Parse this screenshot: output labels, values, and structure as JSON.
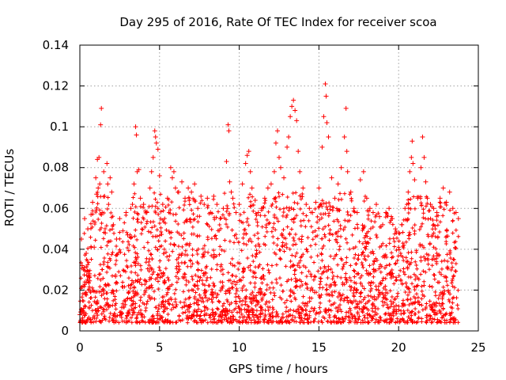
{
  "chart_data": {
    "type": "scatter",
    "title": "Day 295 of 2016, Rate Of TEC Index for receiver scoa",
    "xlabel": "GPS time / hours",
    "ylabel": "ROTI / TECUs",
    "xlim": [
      0,
      25
    ],
    "ylim": [
      0,
      0.14
    ],
    "xticks": [
      0,
      5,
      10,
      15,
      20,
      25
    ],
    "xtick_labels": [
      "0",
      "5",
      "10",
      "15",
      "20",
      "25"
    ],
    "yticks": [
      0,
      0.02,
      0.04,
      0.06,
      0.08,
      0.1,
      0.12,
      0.14
    ],
    "ytick_labels": [
      "0",
      "0.02",
      "0.04",
      "0.06",
      "0.08",
      "0.1",
      "0.12",
      "0.14"
    ],
    "grid": true,
    "marker": "+",
    "color": "#ff0000",
    "series": [
      {
        "name": "ROTI",
        "points": [
          [
            0.0,
            0.008
          ],
          [
            0.1,
            0.045
          ],
          [
            0.15,
            0.032
          ],
          [
            0.2,
            0.022
          ],
          [
            0.3,
            0.055
          ],
          [
            0.35,
            0.018
          ],
          [
            0.4,
            0.038
          ],
          [
            0.5,
            0.05
          ],
          [
            0.6,
            0.028
          ],
          [
            0.7,
            0.057
          ],
          [
            0.8,
            0.063
          ],
          [
            0.9,
            0.041
          ],
          [
            1.0,
            0.075
          ],
          [
            1.05,
            0.067
          ],
          [
            1.1,
            0.084
          ],
          [
            1.15,
            0.07
          ],
          [
            1.2,
            0.085
          ],
          [
            1.25,
            0.072
          ],
          [
            1.3,
            0.101
          ],
          [
            1.35,
            0.109
          ],
          [
            1.4,
            0.058
          ],
          [
            1.5,
            0.078
          ],
          [
            1.55,
            0.066
          ],
          [
            1.6,
            0.048
          ],
          [
            1.7,
            0.082
          ],
          [
            1.75,
            0.072
          ],
          [
            1.8,
            0.062
          ],
          [
            1.9,
            0.075
          ],
          [
            2.0,
            0.068
          ],
          [
            2.1,
            0.052
          ],
          [
            2.3,
            0.045
          ],
          [
            2.5,
            0.055
          ],
          [
            2.7,
            0.049
          ],
          [
            2.9,
            0.058
          ],
          [
            3.0,
            0.047
          ],
          [
            3.2,
            0.06
          ],
          [
            3.3,
            0.062
          ],
          [
            3.4,
            0.072
          ],
          [
            3.5,
            0.1
          ],
          [
            3.55,
            0.096
          ],
          [
            3.6,
            0.078
          ],
          [
            3.7,
            0.079
          ],
          [
            3.8,
            0.065
          ],
          [
            4.0,
            0.062
          ],
          [
            4.2,
            0.058
          ],
          [
            4.4,
            0.07
          ],
          [
            4.5,
            0.078
          ],
          [
            4.6,
            0.085
          ],
          [
            4.7,
            0.098
          ],
          [
            4.75,
            0.095
          ],
          [
            4.8,
            0.092
          ],
          [
            4.9,
            0.089
          ],
          [
            5.0,
            0.076
          ],
          [
            5.2,
            0.062
          ],
          [
            5.5,
            0.065
          ],
          [
            5.7,
            0.08
          ],
          [
            5.8,
            0.075
          ],
          [
            5.9,
            0.078
          ],
          [
            6.0,
            0.07
          ],
          [
            6.2,
            0.068
          ],
          [
            6.4,
            0.073
          ],
          [
            6.6,
            0.065
          ],
          [
            6.8,
            0.07
          ],
          [
            7.0,
            0.068
          ],
          [
            7.2,
            0.072
          ],
          [
            7.4,
            0.06
          ],
          [
            7.6,
            0.066
          ],
          [
            7.8,
            0.062
          ],
          [
            8.0,
            0.065
          ],
          [
            8.2,
            0.058
          ],
          [
            8.4,
            0.066
          ],
          [
            8.6,
            0.062
          ],
          [
            8.8,
            0.055
          ],
          [
            9.0,
            0.06
          ],
          [
            9.2,
            0.083
          ],
          [
            9.3,
            0.101
          ],
          [
            9.35,
            0.098
          ],
          [
            9.4,
            0.073
          ],
          [
            9.5,
            0.068
          ],
          [
            9.6,
            0.065
          ],
          [
            9.8,
            0.058
          ],
          [
            10.0,
            0.062
          ],
          [
            10.2,
            0.072
          ],
          [
            10.4,
            0.082
          ],
          [
            10.5,
            0.086
          ],
          [
            10.6,
            0.088
          ],
          [
            10.7,
            0.078
          ],
          [
            10.8,
            0.07
          ],
          [
            11.0,
            0.064
          ],
          [
            11.2,
            0.058
          ],
          [
            11.4,
            0.06
          ],
          [
            11.6,
            0.065
          ],
          [
            11.8,
            0.07
          ],
          [
            12.0,
            0.072
          ],
          [
            12.2,
            0.078
          ],
          [
            12.3,
            0.092
          ],
          [
            12.4,
            0.098
          ],
          [
            12.5,
            0.085
          ],
          [
            12.6,
            0.08
          ],
          [
            12.8,
            0.075
          ],
          [
            13.0,
            0.09
          ],
          [
            13.1,
            0.095
          ],
          [
            13.2,
            0.105
          ],
          [
            13.3,
            0.11
          ],
          [
            13.4,
            0.113
          ],
          [
            13.5,
            0.108
          ],
          [
            13.6,
            0.103
          ],
          [
            13.7,
            0.088
          ],
          [
            13.8,
            0.078
          ],
          [
            14.0,
            0.07
          ],
          [
            14.2,
            0.062
          ],
          [
            14.4,
            0.06
          ],
          [
            14.6,
            0.058
          ],
          [
            14.8,
            0.063
          ],
          [
            15.0,
            0.07
          ],
          [
            15.2,
            0.09
          ],
          [
            15.3,
            0.105
          ],
          [
            15.4,
            0.121
          ],
          [
            15.45,
            0.115
          ],
          [
            15.5,
            0.102
          ],
          [
            15.6,
            0.095
          ],
          [
            15.8,
            0.075
          ],
          [
            16.0,
            0.065
          ],
          [
            16.2,
            0.072
          ],
          [
            16.4,
            0.08
          ],
          [
            16.6,
            0.095
          ],
          [
            16.7,
            0.109
          ],
          [
            16.75,
            0.088
          ],
          [
            16.8,
            0.078
          ],
          [
            17.0,
            0.068
          ],
          [
            17.2,
            0.06
          ],
          [
            17.4,
            0.058
          ],
          [
            17.6,
            0.074
          ],
          [
            17.8,
            0.078
          ],
          [
            18.0,
            0.065
          ],
          [
            18.2,
            0.06
          ],
          [
            18.4,
            0.058
          ],
          [
            18.6,
            0.062
          ],
          [
            18.8,
            0.056
          ],
          [
            19.0,
            0.052
          ],
          [
            19.2,
            0.058
          ],
          [
            19.4,
            0.06
          ],
          [
            19.6,
            0.055
          ],
          [
            19.8,
            0.05
          ],
          [
            20.0,
            0.048
          ],
          [
            20.2,
            0.052
          ],
          [
            20.4,
            0.06
          ],
          [
            20.6,
            0.068
          ],
          [
            20.7,
            0.078
          ],
          [
            20.8,
            0.085
          ],
          [
            20.85,
            0.093
          ],
          [
            20.9,
            0.082
          ],
          [
            21.0,
            0.074
          ],
          [
            21.2,
            0.065
          ],
          [
            21.4,
            0.08
          ],
          [
            21.5,
            0.095
          ],
          [
            21.6,
            0.085
          ],
          [
            21.7,
            0.073
          ],
          [
            21.8,
            0.065
          ],
          [
            22.0,
            0.062
          ],
          [
            22.2,
            0.06
          ],
          [
            22.4,
            0.058
          ],
          [
            22.6,
            0.065
          ],
          [
            22.8,
            0.07
          ],
          [
            23.0,
            0.063
          ],
          [
            23.2,
            0.068
          ],
          [
            23.4,
            0.06
          ],
          [
            23.6,
            0.058
          ],
          [
            23.75,
            0.055
          ]
        ]
      }
    ]
  }
}
